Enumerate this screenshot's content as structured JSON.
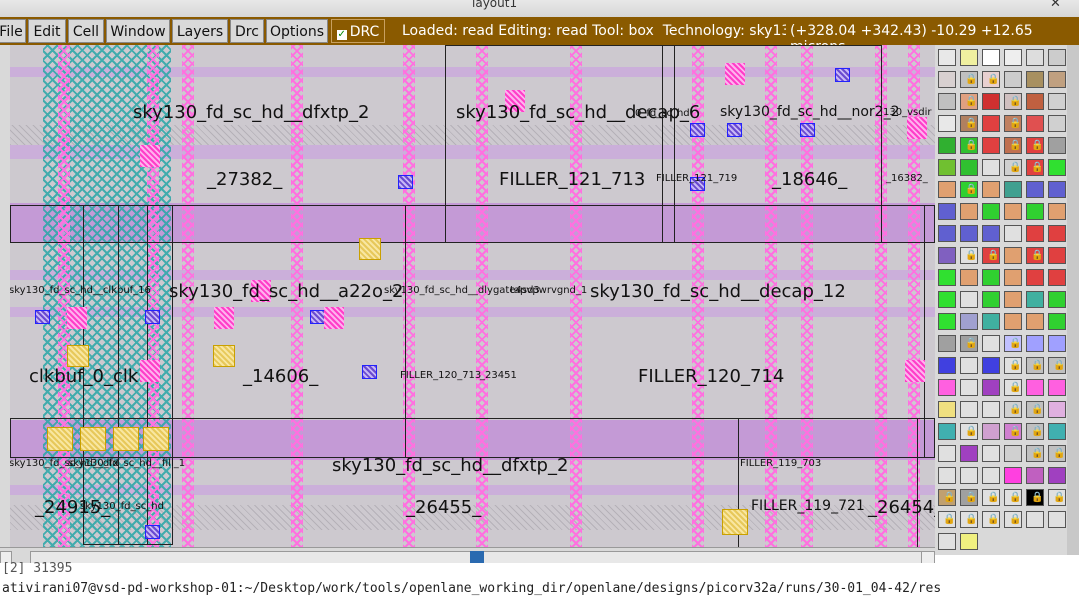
{
  "window": {
    "title": "layout1",
    "close": "✕"
  },
  "menubar": {
    "items": [
      "File",
      "Edit",
      "Cell",
      "Window",
      "Layers",
      "Drc",
      "Options"
    ],
    "drc_label": "DRC",
    "drc_check": "✓",
    "status": "Loaded: read Editing: read Tool: box  Technology: sky13",
    "coords": "(+328.04 +342.43) -10.29 +12.65 microns"
  },
  "layout": {
    "labels_big": [
      "sky130_fd_sc_hd__dfxtp_2",
      "sky130_fd_sc_hd__decap_6",
      "_27382_",
      "FILLER_121_713",
      "_18646_",
      "sky130_fd_sc_hd__a22o_2",
      "sky130_fd_sc_hd__decap_12",
      "clkbuf_0_clk",
      "_14606_",
      "FILLER_120_714",
      "sky130_fd_sc_hd__dfxtp_2",
      "_24915_",
      "_26455_",
      "_26454_"
    ],
    "labels_med": [
      "sky130_fd_sc_hd__nor2_2",
      "FILLER_119_721"
    ],
    "labels_small": [
      "sky130_fd_sc_hd__clkbuf_16",
      "FILLER_121_719",
      "_16382_",
      "130_vsdir",
      "sky130_fd_sc_hd__dlygate4sd3",
      "FILLER_120_713",
      "_23451",
      "sky130_fd_sc_hd_dfxtp",
      "sky130_fd_sc_hd__fill_1",
      "130_fd_sc_hd",
      "sky130_fd_sc_hd",
      "sky130_fd_sc_hd__dfx",
      "FILLER_119_703",
      "tapvpwrvgnd_1",
      "0_fd_sc_hd"
    ]
  },
  "palette": {
    "lock": "🔒"
  },
  "terminal": {
    "line1": "[2] 31395",
    "line2": "ativirani07@vsd-pd-workshop-01:~/Desktop/work/tools/openlane_working_dir/openlane/designs/picorv32a/runs/30-01_04-42/res"
  },
  "colors": {
    "menubar": "#8a5a00",
    "metal_pink": "#ff70e0",
    "li_purple": "#c9a6dd",
    "nwell_teal": "#2aa8a8",
    "via_blue": "#3a2ad0"
  }
}
